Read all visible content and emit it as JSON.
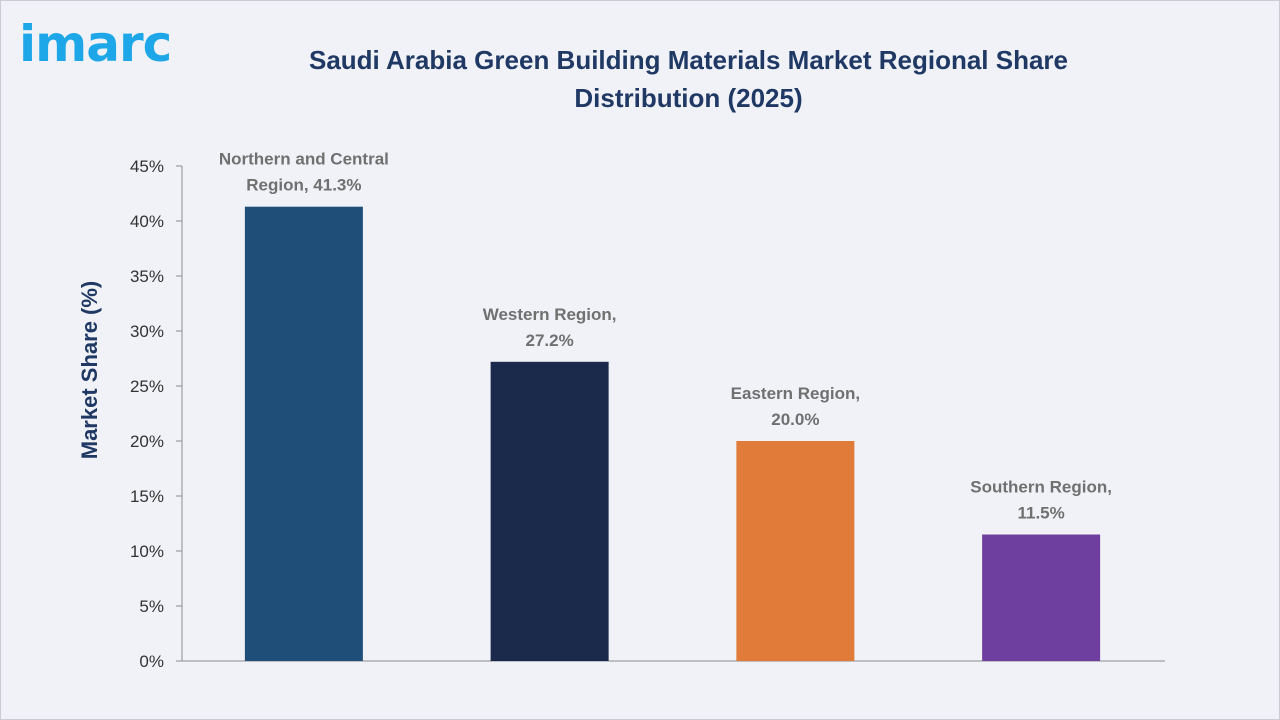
{
  "logo": {
    "text": "imarc"
  },
  "chart_data": {
    "type": "bar",
    "title": "Saudi Arabia Green Building Materials Market Regional Share Distribution (2025)",
    "xlabel": "",
    "ylabel": "Market Share (%)",
    "ylim": [
      0,
      45
    ],
    "yticks": [
      0,
      5,
      10,
      15,
      20,
      25,
      30,
      35,
      40,
      45
    ],
    "ytick_labels": [
      "0%",
      "5%",
      "10%",
      "15%",
      "20%",
      "25%",
      "30%",
      "35%",
      "40%",
      "45%"
    ],
    "grid": false,
    "categories": [
      "Northern and Central Region",
      "Western Region",
      "Eastern Region",
      "Southern Region"
    ],
    "values": [
      41.3,
      27.2,
      20.0,
      11.5
    ],
    "data_labels": [
      [
        "Northern and Central",
        "Region, 41.3%"
      ],
      [
        "Western Region,",
        "27.2%"
      ],
      [
        "Eastern Region,",
        "20.0%"
      ],
      [
        "Southern Region,",
        "11.5%"
      ]
    ],
    "colors": [
      "#1f4e79",
      "#1b2a4a",
      "#e07b39",
      "#6f3fa0"
    ]
  }
}
